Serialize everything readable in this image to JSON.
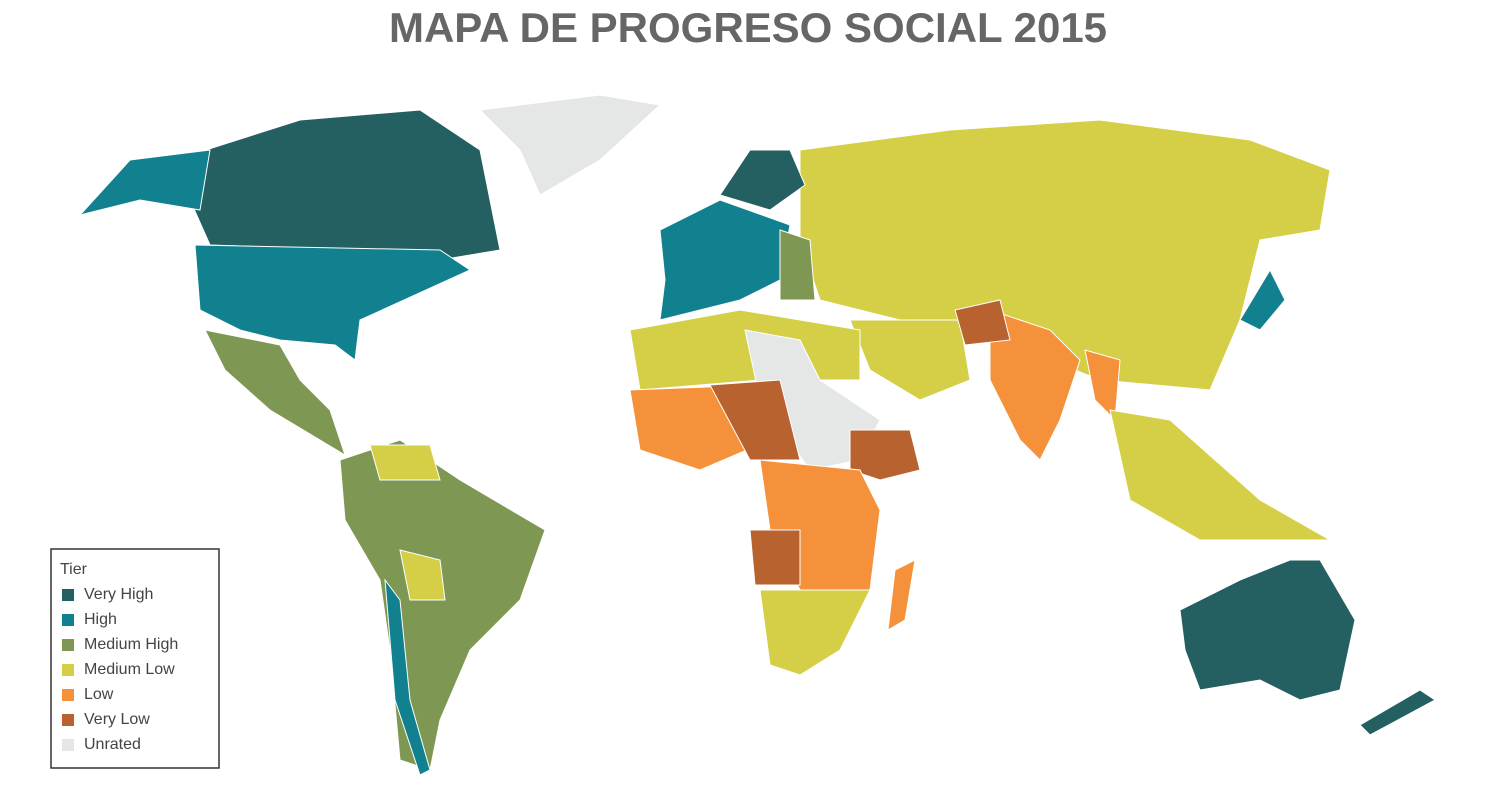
{
  "title": "MAPA DE PROGRESO SOCIAL 2015",
  "legend": {
    "title": "Tier",
    "items": [
      {
        "label": "Very High",
        "color": "#245f61"
      },
      {
        "label": "High",
        "color": "#12818f"
      },
      {
        "label": "Medium High",
        "color": "#7e9752"
      },
      {
        "label": "Medium Low",
        "color": "#d5cf47"
      },
      {
        "label": "Low",
        "color": "#f6913b"
      },
      {
        "label": "Very Low",
        "color": "#b8622f"
      },
      {
        "label": "Unrated",
        "color": "#e5e7e6"
      }
    ]
  }
}
